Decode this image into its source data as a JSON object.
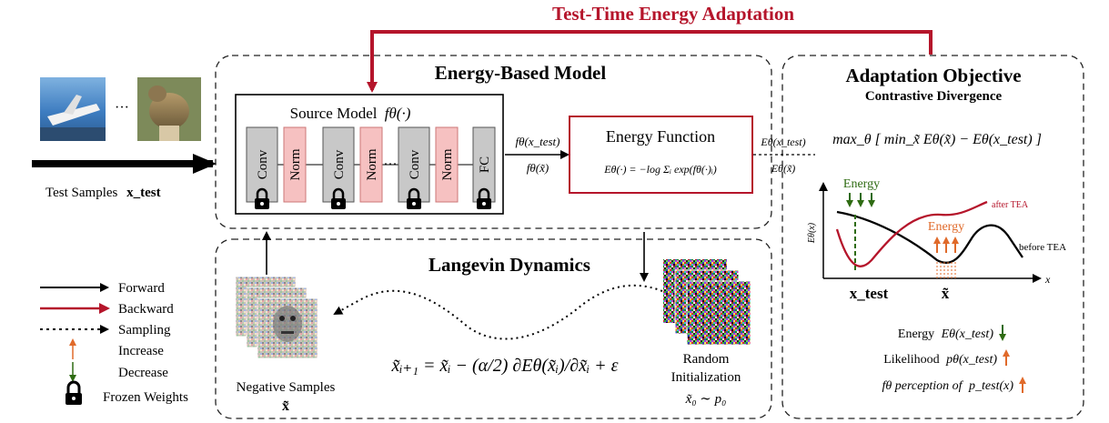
{
  "title": "Test-Time Energy Adaptation",
  "energy_model": {
    "heading": "Energy-Based Model",
    "source_model_label": "Source Model",
    "source_model_symbol": "fθ(·)",
    "layers": [
      "Conv",
      "Norm",
      "Conv",
      "Norm",
      "Conv",
      "Norm",
      "FC"
    ],
    "ellipsis": "···",
    "out_top": "fθ(x_test)",
    "out_bottom": "fθ(x̃)",
    "energy_function_label": "Energy Function",
    "energy_formula": "Eθ(·) = −log Σᵢ exp(fθ(·)ᵢ)",
    "energy_out_top": "Eθ(x_test)",
    "energy_out_bottom": "Eθ(x̃)"
  },
  "inputs": {
    "ellipsis": "···",
    "test_samples_label": "Test Samples",
    "test_samples_symbol": "x_test"
  },
  "langevin": {
    "heading": "Langevin Dynamics",
    "update_rule": "x̃ᵢ₊₁ = x̃ᵢ − (α/2) ∂Eθ(x̃ᵢ)/∂x̃ᵢ + ε",
    "negative_samples_label": "Negative Samples",
    "negative_samples_symbol": "x̃",
    "random_init_label_1": "Random",
    "random_init_label_2": "Initialization",
    "random_init_formula": "x̃₀ ∼ p₀"
  },
  "objective": {
    "heading": "Adaptation Objective",
    "subheading": "Contrastive Divergence",
    "formula": "max_θ [ min_x̃ Eθ(x̃) − Eθ(x_test) ]",
    "plot": {
      "y_axis": "Eθ(x)",
      "x_axis": "x",
      "energy_down_label": "Energy",
      "energy_up_label": "Energy",
      "after_label": "after TEA",
      "before_label": "before TEA",
      "x_test_label": "x_test",
      "x_tilde_label": "x̃"
    },
    "effects": [
      {
        "label": "Energy",
        "expr": "Eθ(x_test)",
        "arrow": "down"
      },
      {
        "label": "Likelihood",
        "expr": "pθ(x_test)",
        "arrow": "up"
      },
      {
        "label": "fθ perception of",
        "expr": "p_test(x)",
        "arrow": "up"
      }
    ]
  },
  "legend": [
    {
      "label": "Forward",
      "icon": "forward-arrow"
    },
    {
      "label": "Backward",
      "icon": "backward-arrow"
    },
    {
      "label": "Sampling",
      "icon": "sampling-arrow"
    },
    {
      "label": "Increase",
      "icon": "increase-arrow"
    },
    {
      "label": "Decrease",
      "icon": "decrease-arrow"
    },
    {
      "label": "Frozen Weights",
      "icon": "lock-icon"
    }
  ],
  "colors": {
    "red": "#b5152b",
    "green": "#2e6b12",
    "orange": "#e06a2a",
    "norm_fill": "#f6c1c1",
    "conv_fill": "#c8c8c8"
  }
}
